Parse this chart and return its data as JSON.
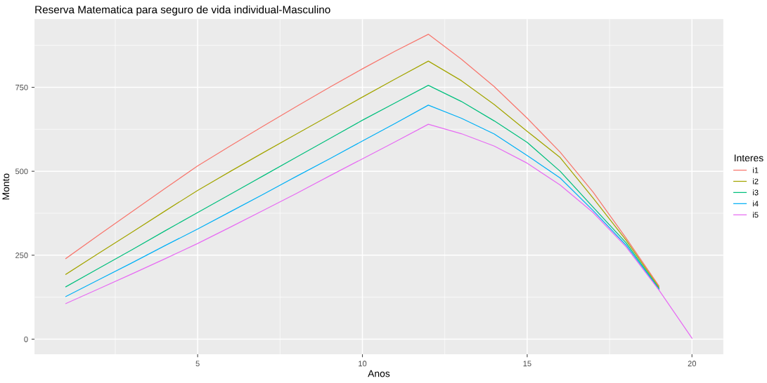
{
  "chart_data": {
    "type": "line",
    "title": "Reserva Matematica para seguro de vida individual-Masculino",
    "xlabel": "Anos",
    "ylabel": "Monto",
    "legend_title": "Interes",
    "legend": "right",
    "grid": true,
    "line_style": "solid",
    "x": [
      1,
      2,
      3,
      4,
      5,
      6,
      7,
      8,
      9,
      10,
      11,
      12,
      13,
      14,
      15,
      16,
      17,
      18,
      19,
      20
    ],
    "xlim": [
      0.05,
      20.95
    ],
    "xticks": [
      5,
      10,
      15,
      20
    ],
    "ylim": [
      -45,
      953
    ],
    "yticks": [
      0,
      250,
      500,
      750
    ],
    "series": [
      {
        "name": "i1",
        "color": "#f8766d",
        "values": [
          240,
          310,
          379,
          448,
          516,
          576,
          635,
          693,
          750,
          805,
          858,
          908,
          834,
          752,
          658,
          557,
          438,
          301,
          158,
          null
        ]
      },
      {
        "name": "i2",
        "color": "#a3a500",
        "values": [
          193,
          256,
          318,
          381,
          443,
          500,
          556,
          611,
          666,
          721,
          775,
          828,
          770,
          699,
          619,
          541,
          420,
          295,
          154,
          null
        ]
      },
      {
        "name": "i3",
        "color": "#00bf7d",
        "values": [
          156,
          211,
          266,
          322,
          377,
          432,
          487,
          542,
          597,
          652,
          704,
          756,
          708,
          650,
          586,
          500,
          393,
          287,
          150,
          null
        ]
      },
      {
        "name": "i4",
        "color": "#00b0f6",
        "values": [
          127,
          177,
          227,
          278,
          328,
          380,
          432,
          485,
          537,
          590,
          643,
          697,
          658,
          611,
          547,
          480,
          383,
          280,
          148,
          null
        ]
      },
      {
        "name": "i5",
        "color": "#e76bf3",
        "values": [
          106,
          150,
          194,
          239,
          285,
          334,
          384,
          434,
          486,
          537,
          588,
          640,
          612,
          575,
          524,
          459,
          377,
          275,
          146,
          3
        ]
      }
    ]
  }
}
